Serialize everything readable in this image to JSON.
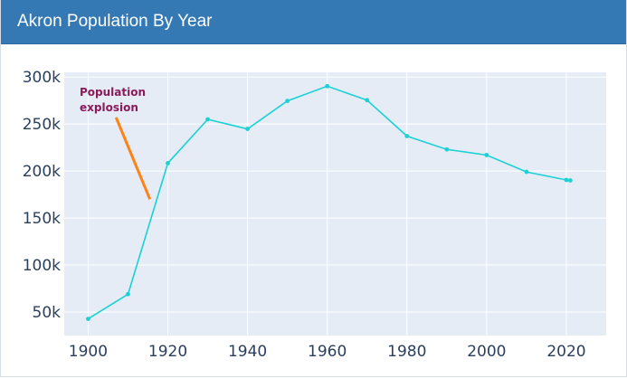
{
  "card": {
    "title": "Akron Population By Year"
  },
  "colors": {
    "header": "#3478b4",
    "plot_bg": "#e5ecf6",
    "grid": "#ffffff",
    "line": "#1ad1d3",
    "annotation_text": "#8b1a5a",
    "annotation_line": "#ff8214",
    "tick_text": "#2a3f5f"
  },
  "chart_data": {
    "type": "line",
    "title": "",
    "xlabel": "",
    "ylabel": "",
    "x": [
      1900,
      1910,
      1920,
      1930,
      1940,
      1950,
      1960,
      1970,
      1980,
      1990,
      2000,
      2010,
      2020,
      2021
    ],
    "series": [
      {
        "values": [
          42700,
          69000,
          208400,
          255000,
          244800,
          274600,
          290300,
          275400,
          237200,
          223000,
          217000,
          199100,
          190500,
          190000
        ]
      }
    ],
    "xlim": [
      1894,
      2030
    ],
    "ylim": [
      25000,
      305000
    ],
    "x_ticks": [
      1900,
      1920,
      1940,
      1960,
      1980,
      2000,
      2020
    ],
    "x_tick_labels": [
      "1900",
      "1920",
      "1940",
      "1960",
      "1980",
      "2000",
      "2020"
    ],
    "y_ticks": [
      50000,
      100000,
      150000,
      200000,
      250000,
      300000
    ],
    "y_tick_labels": [
      "50k",
      "100k",
      "150k",
      "200k",
      "250k",
      "300k"
    ],
    "grid": true,
    "legend": "none",
    "annotation": {
      "lines": [
        "Population",
        "explosion"
      ],
      "arrow_from": [
        1907,
        257000
      ],
      "arrow_to": [
        1915.5,
        170000
      ]
    }
  }
}
